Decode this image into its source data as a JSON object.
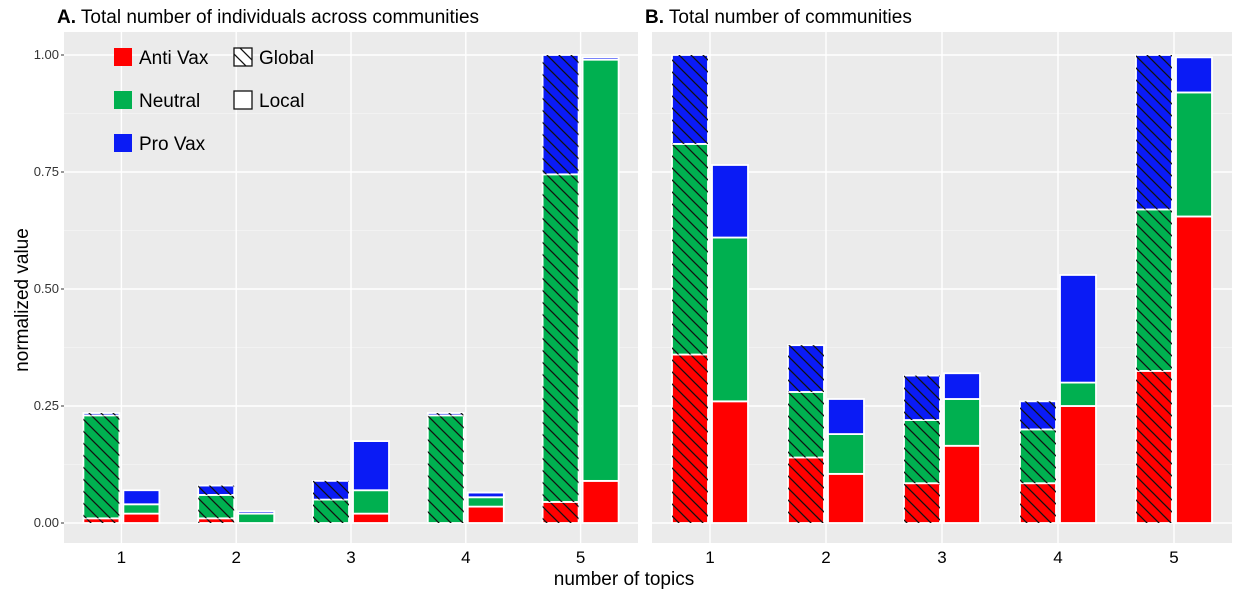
{
  "chart_data": {
    "type": "bar",
    "xlabel": "number of topics",
    "ylabel": "normalized value",
    "ylim": [
      0,
      1.0
    ],
    "yticks": [
      "0.00",
      "0.25",
      "0.50",
      "0.75",
      "1.00"
    ],
    "categories": [
      "1",
      "2",
      "3",
      "4",
      "5"
    ],
    "groups": [
      "Global",
      "Local"
    ],
    "stances": [
      "Anti Vax",
      "Neutral",
      "Pro Vax"
    ],
    "colors": {
      "Anti Vax": "#ff0000",
      "Neutral": "#00b050",
      "Pro Vax": "#0a1bf5"
    },
    "grid": true,
    "legend": {
      "position": "top-left of panel A",
      "items": [
        {
          "label": "Anti Vax",
          "kind": "color",
          "key": "Anti Vax"
        },
        {
          "label": "Global",
          "kind": "hatch"
        },
        {
          "label": "Neutral",
          "kind": "color",
          "key": "Neutral"
        },
        {
          "label": "Local",
          "kind": "outline"
        },
        {
          "label": "Pro Vax",
          "kind": "color",
          "key": "Pro Vax"
        }
      ]
    },
    "panels": [
      {
        "letter": "A.",
        "title": "Total number of individuals across communities",
        "show_yticks": true,
        "bars": [
          {
            "category": "1",
            "group": "Global",
            "values": {
              "Anti Vax": 0.01,
              "Neutral": 0.22,
              "Pro Vax": 0.005
            }
          },
          {
            "category": "1",
            "group": "Local",
            "values": {
              "Anti Vax": 0.02,
              "Neutral": 0.02,
              "Pro Vax": 0.03
            }
          },
          {
            "category": "2",
            "group": "Global",
            "values": {
              "Anti Vax": 0.01,
              "Neutral": 0.05,
              "Pro Vax": 0.02
            }
          },
          {
            "category": "2",
            "group": "Local",
            "values": {
              "Anti Vax": 0.0,
              "Neutral": 0.02,
              "Pro Vax": 0.005
            }
          },
          {
            "category": "3",
            "group": "Global",
            "values": {
              "Anti Vax": 0.0,
              "Neutral": 0.05,
              "Pro Vax": 0.04
            }
          },
          {
            "category": "3",
            "group": "Local",
            "values": {
              "Anti Vax": 0.02,
              "Neutral": 0.05,
              "Pro Vax": 0.105
            }
          },
          {
            "category": "4",
            "group": "Global",
            "values": {
              "Anti Vax": 0.0,
              "Neutral": 0.23,
              "Pro Vax": 0.005
            }
          },
          {
            "category": "4",
            "group": "Local",
            "values": {
              "Anti Vax": 0.035,
              "Neutral": 0.02,
              "Pro Vax": 0.01
            }
          },
          {
            "category": "5",
            "group": "Global",
            "values": {
              "Anti Vax": 0.045,
              "Neutral": 0.7,
              "Pro Vax": 0.255
            }
          },
          {
            "category": "5",
            "group": "Local",
            "values": {
              "Anti Vax": 0.09,
              "Neutral": 0.9,
              "Pro Vax": 0.005
            }
          }
        ]
      },
      {
        "letter": "B.",
        "title": "Total number of communities",
        "show_yticks": false,
        "bars": [
          {
            "category": "1",
            "group": "Global",
            "values": {
              "Anti Vax": 0.36,
              "Neutral": 0.45,
              "Pro Vax": 0.19
            }
          },
          {
            "category": "1",
            "group": "Local",
            "values": {
              "Anti Vax": 0.26,
              "Neutral": 0.35,
              "Pro Vax": 0.155
            }
          },
          {
            "category": "2",
            "group": "Global",
            "values": {
              "Anti Vax": 0.14,
              "Neutral": 0.14,
              "Pro Vax": 0.1
            }
          },
          {
            "category": "2",
            "group": "Local",
            "values": {
              "Anti Vax": 0.105,
              "Neutral": 0.085,
              "Pro Vax": 0.075
            }
          },
          {
            "category": "3",
            "group": "Global",
            "values": {
              "Anti Vax": 0.085,
              "Neutral": 0.135,
              "Pro Vax": 0.095
            }
          },
          {
            "category": "3",
            "group": "Local",
            "values": {
              "Anti Vax": 0.165,
              "Neutral": 0.1,
              "Pro Vax": 0.055
            }
          },
          {
            "category": "4",
            "group": "Global",
            "values": {
              "Anti Vax": 0.085,
              "Neutral": 0.115,
              "Pro Vax": 0.06
            }
          },
          {
            "category": "4",
            "group": "Local",
            "values": {
              "Anti Vax": 0.25,
              "Neutral": 0.05,
              "Pro Vax": 0.23
            }
          },
          {
            "category": "5",
            "group": "Global",
            "values": {
              "Anti Vax": 0.325,
              "Neutral": 0.345,
              "Pro Vax": 0.33
            }
          },
          {
            "category": "5",
            "group": "Local",
            "values": {
              "Anti Vax": 0.655,
              "Neutral": 0.265,
              "Pro Vax": 0.075
            }
          }
        ]
      }
    ]
  }
}
